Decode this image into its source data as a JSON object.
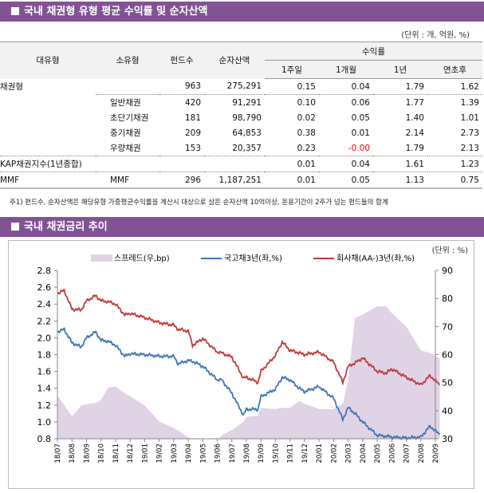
{
  "section1": {
    "title": "국내 채권형 유형 평균 수익률 및 순자산액",
    "unit": "(단위 : 개, 억원, %)",
    "headers": {
      "major": "대유형",
      "minor": "소유형",
      "funds": "펀드수",
      "assets": "순자산액",
      "returns": "수익률",
      "w1": "1주일",
      "m1": "1개월",
      "y1": "1년",
      "ytd": "연초후"
    },
    "rows": [
      {
        "major": "채권형",
        "minor": "",
        "funds": "963",
        "assets": "275,291",
        "w1": "0.15",
        "m1": "0.04",
        "y1": "1.79",
        "ytd": "1.62"
      },
      {
        "major": "",
        "minor": "일반채권",
        "funds": "420",
        "assets": "91,291",
        "w1": "0.10",
        "m1": "0.06",
        "y1": "1.77",
        "ytd": "1.39"
      },
      {
        "major": "",
        "minor": "초단기채권",
        "funds": "181",
        "assets": "98,790",
        "w1": "0.02",
        "m1": "0.05",
        "y1": "1.40",
        "ytd": "1.01"
      },
      {
        "major": "",
        "minor": "중기채권",
        "funds": "209",
        "assets": "64,853",
        "w1": "0.38",
        "m1": "0.01",
        "y1": "2.14",
        "ytd": "2.73"
      },
      {
        "major": "",
        "minor": "우량채권",
        "funds": "153",
        "assets": "20,357",
        "w1": "0.23",
        "m1": "-0.00",
        "y1": "1.79",
        "ytd": "2.13"
      },
      {
        "major": "KAP채권지수(1년종합)",
        "minor": "",
        "funds": "",
        "assets": "",
        "w1": "0.01",
        "m1": "0.04",
        "y1": "1.61",
        "ytd": "1.23"
      },
      {
        "major": "MMF",
        "minor": "MMF",
        "funds": "296",
        "assets": "1,187,251",
        "w1": "0.01",
        "m1": "0.05",
        "y1": "1.13",
        "ytd": "0.75"
      }
    ],
    "note": "주1) 펀드수, 순자산액은 해당유형 가중평균수익률을 계산시 대상으로 삼은 순자산액 10억이상, 운용기간이 2주가 넘는 펀드들의 합계"
  },
  "section2": {
    "title": "국내 채권금리 추이"
  },
  "colors": {
    "header": "#815394",
    "spread": "#e0d3e6",
    "treasury": "#3f74b8",
    "corporate": "#c0393b",
    "negative": "#ee0000"
  },
  "chart_data": {
    "type": "line",
    "unit": "(단위 : %)",
    "x_tick_labels": [
      "18/07",
      "18/08",
      "18/09",
      "18/10",
      "18/11",
      "18/12",
      "19/01",
      "19/02",
      "19/03",
      "19/04",
      "19/05",
      "19/06",
      "19/07",
      "19/08",
      "19/09",
      "19/10",
      "19/11",
      "19/12",
      "20/01",
      "20/02",
      "20/03",
      "20/04",
      "20/05",
      "20/06",
      "20/07",
      "20/08",
      "20/09"
    ],
    "y_left": {
      "range": [
        0.8,
        2.8
      ],
      "ticks": [
        "0.8",
        "1.0",
        "1.2",
        "1.4",
        "1.6",
        "1.8",
        "2.0",
        "2.2",
        "2.4",
        "2.6",
        "2.8"
      ]
    },
    "y_right": {
      "range": [
        30,
        90
      ],
      "ticks": [
        "30",
        "40",
        "50",
        "60",
        "70",
        "80",
        "90"
      ]
    },
    "grid": false,
    "legend": "top",
    "x": [
      "2018-07-01",
      "2018-07-15",
      "2018-08-01",
      "2018-08-20",
      "2018-09-01",
      "2018-09-20",
      "2018-10-01",
      "2018-10-15",
      "2018-11-01",
      "2018-11-20",
      "2018-12-01",
      "2019-01-01",
      "2019-02-01",
      "2019-03-01",
      "2019-03-10",
      "2019-04-01",
      "2019-04-10",
      "2019-05-01",
      "2019-06-01",
      "2019-06-10",
      "2019-07-01",
      "2019-07-25",
      "2019-08-01",
      "2019-08-25",
      "2019-09-01",
      "2019-10-01",
      "2019-10-15",
      "2019-11-01",
      "2019-11-20",
      "2019-12-01",
      "2020-01-01",
      "2020-02-01",
      "2020-02-20",
      "2020-03-01",
      "2020-03-15",
      "2020-04-01",
      "2020-05-01",
      "2020-05-20",
      "2020-06-01",
      "2020-07-01",
      "2020-08-01",
      "2020-08-20",
      "2020-09-10"
    ],
    "series": [
      {
        "name": "스프레드(우,bp)",
        "type": "area",
        "axis": "right",
        "values": [
          45.4,
          42,
          38,
          41.8,
          42.3,
          42.8,
          43.8,
          48.1,
          48.7,
          46.2,
          45.2,
          41.8,
          36.2,
          33.8,
          33,
          30.5,
          30,
          29,
          29,
          31.2,
          33.1,
          36,
          37.8,
          38.3,
          41,
          40.6,
          41,
          41,
          43.5,
          42.5,
          40.6,
          40.6,
          42.5,
          51,
          73,
          74.3,
          77.2,
          77.2,
          74.8,
          70,
          61.5,
          60.6,
          58.7
        ]
      },
      {
        "name": "국고채3년(좌,%)",
        "type": "line",
        "axis": "left",
        "values": [
          2.07,
          2.1,
          1.94,
          1.89,
          2.0,
          2.07,
          1.97,
          1.96,
          1.91,
          1.78,
          1.81,
          1.8,
          1.78,
          1.78,
          1.69,
          1.73,
          1.72,
          1.66,
          1.5,
          1.5,
          1.34,
          1.08,
          1.15,
          1.15,
          1.3,
          1.39,
          1.53,
          1.5,
          1.4,
          1.36,
          1.42,
          1.28,
          1.03,
          1.17,
          1.1,
          1.0,
          0.84,
          0.83,
          0.82,
          0.81,
          0.82,
          0.95,
          0.85
        ]
      },
      {
        "name": "회사채(AA-)3년(좌,%)",
        "type": "line",
        "axis": "left",
        "values": [
          2.53,
          2.56,
          2.34,
          2.33,
          2.44,
          2.5,
          2.44,
          2.43,
          2.4,
          2.27,
          2.29,
          2.24,
          2.18,
          2.15,
          2.1,
          2.08,
          1.91,
          1.99,
          1.83,
          1.82,
          1.77,
          1.52,
          1.53,
          1.47,
          1.6,
          1.79,
          1.95,
          1.85,
          1.82,
          1.8,
          1.83,
          1.71,
          1.47,
          1.66,
          1.7,
          1.76,
          1.6,
          1.58,
          1.63,
          1.53,
          1.44,
          1.55,
          1.44
        ]
      }
    ]
  }
}
